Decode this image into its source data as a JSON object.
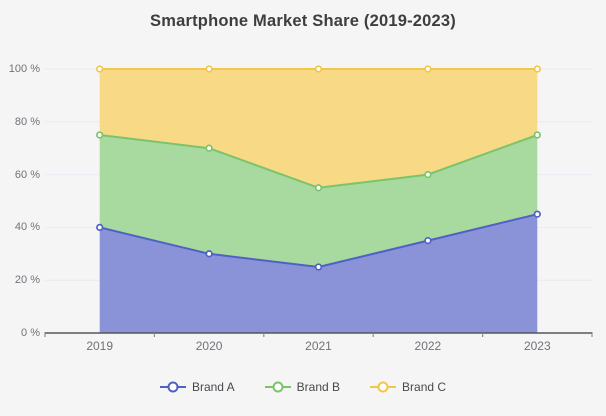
{
  "page": {
    "background_color": "#f5f5f6"
  },
  "chart_data": {
    "type": "area",
    "stacked": true,
    "title": "Smartphone Market Share (2019-2023)",
    "categories": [
      "2019",
      "2020",
      "2021",
      "2022",
      "2023"
    ],
    "series": [
      {
        "name": "Brand A",
        "values": [
          40,
          30,
          25,
          35,
          45
        ],
        "line_color": "#4f61c5",
        "fill_color": "#8a93d7"
      },
      {
        "name": "Brand B",
        "values": [
          35,
          40,
          30,
          25,
          30
        ],
        "line_color": "#7ac46c",
        "fill_color": "#a8d99f"
      },
      {
        "name": "Brand C",
        "values": [
          25,
          30,
          45,
          40,
          25
        ],
        "line_color": "#f2c649",
        "fill_color": "#f8d985"
      }
    ],
    "stacked_totals": {
      "brand_a_top": [
        40,
        30,
        25,
        35,
        45
      ],
      "brand_b_top": [
        75,
        70,
        55,
        60,
        75
      ],
      "brand_c_top": [
        100,
        100,
        100,
        100,
        100
      ]
    },
    "xlabel": "",
    "ylabel": "",
    "ylim": [
      0,
      100
    ],
    "ytick_step": 20,
    "yticklabels": [
      "0 %",
      "20 %",
      "40 %",
      "60 %",
      "80 %",
      "100 %"
    ],
    "grid": true,
    "legend_position": "bottom",
    "legend_labels": [
      "Brand A",
      "Brand B",
      "Brand C"
    ],
    "axis_color": "#54565c",
    "tick_color": "#8b8e93",
    "grid_color": "#e7ebf2",
    "label_color": "#6f7277",
    "marker_fill": "#ffffff"
  }
}
